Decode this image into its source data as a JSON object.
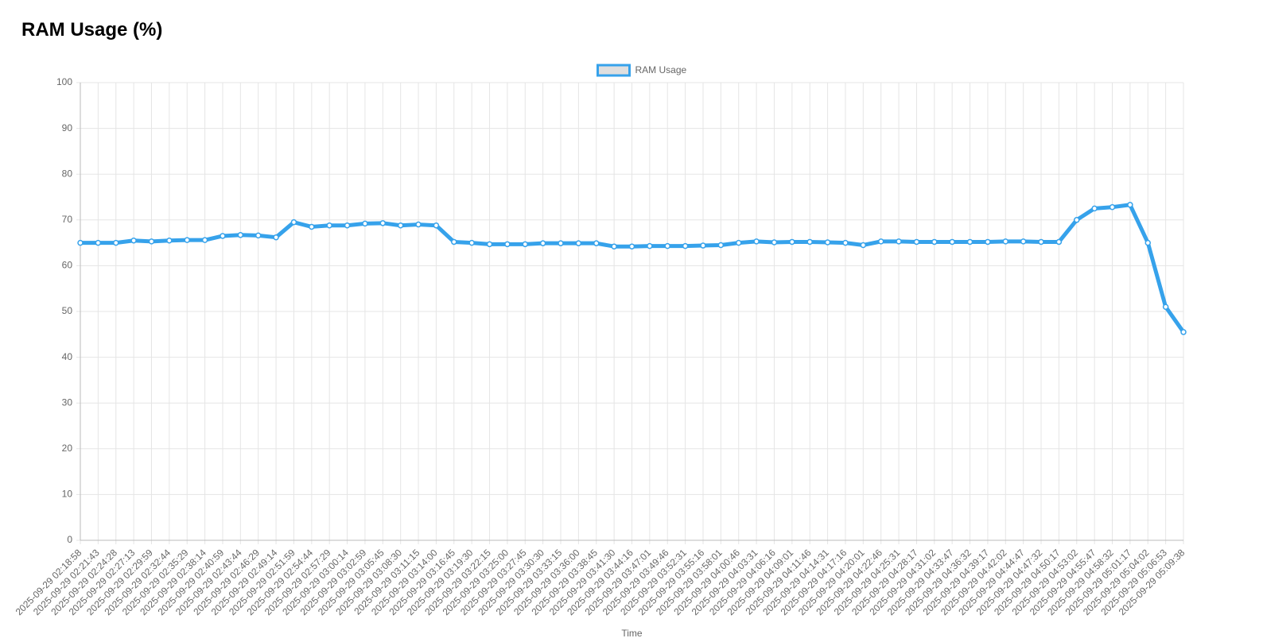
{
  "chart_data": {
    "type": "line",
    "title": "RAM Usage (%)",
    "x_label": "Time",
    "categories": [
      "2025-09-29 02:18:58",
      "2025-09-29 02:21:43",
      "2025-09-29 02:24:28",
      "2025-09-29 02:27:13",
      "2025-09-29 02:29:59",
      "2025-09-29 02:32:44",
      "2025-09-29 02:35:29",
      "2025-09-29 02:38:14",
      "2025-09-29 02:40:59",
      "2025-09-29 02:43:44",
      "2025-09-29 02:46:29",
      "2025-09-29 02:49:14",
      "2025-09-29 02:51:59",
      "2025-09-29 02:54:44",
      "2025-09-29 02:57:29",
      "2025-09-29 03:00:14",
      "2025-09-29 03:02:59",
      "2025-09-29 03:05:45",
      "2025-09-29 03:08:30",
      "2025-09-29 03:11:15",
      "2025-09-29 03:14:00",
      "2025-09-29 03:16:45",
      "2025-09-29 03:19:30",
      "2025-09-29 03:22:15",
      "2025-09-29 03:25:00",
      "2025-09-29 03:27:45",
      "2025-09-29 03:30:30",
      "2025-09-29 03:33:15",
      "2025-09-29 03:36:00",
      "2025-09-29 03:38:45",
      "2025-09-29 03:41:30",
      "2025-09-29 03:44:16",
      "2025-09-29 03:47:01",
      "2025-09-29 03:49:46",
      "2025-09-29 03:52:31",
      "2025-09-29 03:55:16",
      "2025-09-29 03:58:01",
      "2025-09-29 04:00:46",
      "2025-09-29 04:03:31",
      "2025-09-29 04:06:16",
      "2025-09-29 04:09:01",
      "2025-09-29 04:11:46",
      "2025-09-29 04:14:31",
      "2025-09-29 04:17:16",
      "2025-09-29 04:20:01",
      "2025-09-29 04:22:46",
      "2025-09-29 04:25:31",
      "2025-09-29 04:28:17",
      "2025-09-29 04:31:02",
      "2025-09-29 04:33:47",
      "2025-09-29 04:36:32",
      "2025-09-29 04:39:17",
      "2025-09-29 04:42:02",
      "2025-09-29 04:44:47",
      "2025-09-29 04:47:32",
      "2025-09-29 04:50:17",
      "2025-09-29 04:53:02",
      "2025-09-29 04:55:47",
      "2025-09-29 04:58:32",
      "2025-09-29 05:01:17",
      "2025-09-29 05:04:02",
      "2025-09-29 05:06:53",
      "2025-09-29 05:09:38"
    ],
    "series": [
      {
        "name": "RAM Usage",
        "color": "#36a2eb",
        "values": [
          65,
          65,
          65,
          65.5,
          65.3,
          65.5,
          65.6,
          65.6,
          66.5,
          66.7,
          66.6,
          66.2,
          69.5,
          68.5,
          68.8,
          68.8,
          69.2,
          69.3,
          68.8,
          69,
          68.8,
          65.2,
          65,
          64.7,
          64.7,
          64.7,
          64.9,
          64.9,
          64.9,
          64.9,
          64.2,
          64.2,
          64.3,
          64.3,
          64.3,
          64.4,
          64.5,
          65,
          65.3,
          65.1,
          65.2,
          65.2,
          65.1,
          65,
          64.5,
          65.3,
          65.3,
          65.2,
          65.2,
          65.2,
          65.2,
          65.2,
          65.3,
          65.3,
          65.2,
          65.2,
          70,
          72.5,
          72.8,
          73.3,
          65,
          51,
          45.5
        ]
      }
    ],
    "ylim": [
      0,
      100
    ],
    "yticks": [
      0,
      10,
      20,
      30,
      40,
      50,
      60,
      70,
      80,
      90,
      100
    ],
    "grid": true,
    "legend": "top"
  }
}
